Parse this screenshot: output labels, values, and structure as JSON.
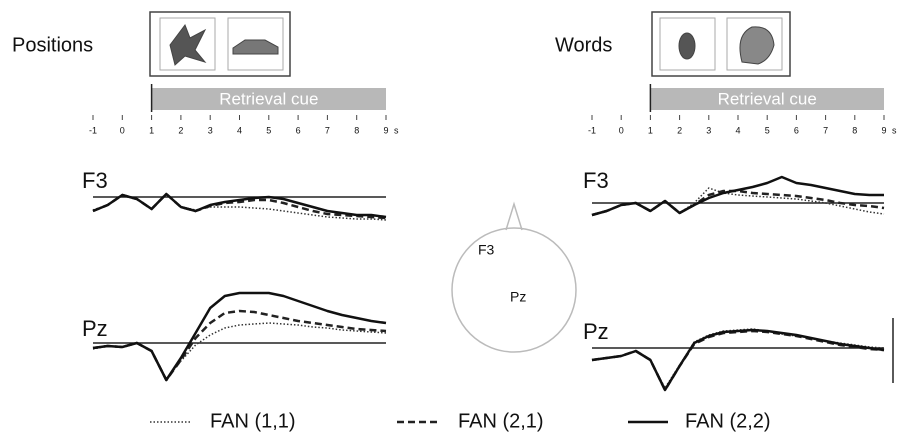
{
  "chart_data": [
    {
      "type": "line",
      "title": "Positions",
      "annotation": "Retrieval cue",
      "channel": "F3",
      "x": [
        -1,
        -0.5,
        0,
        0.5,
        1,
        1.5,
        2,
        2.5,
        3,
        3.5,
        4,
        4.5,
        5,
        5.5,
        6,
        6.5,
        7,
        7.5,
        8,
        8.5,
        9
      ],
      "xlim": [
        -1,
        9
      ],
      "xticks": [
        -1,
        0,
        1,
        2,
        3,
        4,
        5,
        6,
        7,
        8,
        9
      ],
      "xunit": "s",
      "series": [
        {
          "name": "FAN (1,1)",
          "color": "#333333",
          "style": "dotted",
          "values": [
            -13,
            -8,
            2,
            -2,
            -12,
            3,
            -10,
            -13,
            -10,
            -10,
            -10,
            -11,
            -12,
            -14,
            -16,
            -18,
            -20,
            -21,
            -22,
            -22,
            -23
          ]
        },
        {
          "name": "FAN (2,1)",
          "color": "#222222",
          "style": "dashed",
          "values": [
            -14,
            -8,
            2,
            -2,
            -12,
            3,
            -10,
            -14,
            -9,
            -6,
            -5,
            -3,
            -3,
            -6,
            -10,
            -14,
            -17,
            -18,
            -19,
            -20,
            -21
          ]
        },
        {
          "name": "FAN (2,2)",
          "color": "#111111",
          "style": "solid",
          "values": [
            -14,
            -8,
            2,
            -2,
            -12,
            3,
            -10,
            -14,
            -8,
            -5,
            -3,
            -1,
            0,
            -2,
            -6,
            -10,
            -14,
            -16,
            -18,
            -18,
            -20
          ]
        }
      ]
    },
    {
      "type": "line",
      "channel": "Pz",
      "x": [
        -1,
        -0.5,
        0,
        0.5,
        1,
        1.5,
        2,
        2.5,
        3,
        3.5,
        4,
        4.5,
        5,
        5.5,
        6,
        6.5,
        7,
        7.5,
        8,
        8.5,
        9
      ],
      "xlim": [
        -1,
        9
      ],
      "series": [
        {
          "color": "#333333",
          "style": "dotted",
          "values": [
            -6,
            -3,
            -4,
            0,
            -8,
            -36,
            -18,
            -2,
            8,
            15,
            18,
            19,
            20,
            19,
            18,
            16,
            15,
            13,
            12,
            11,
            10
          ]
        },
        {
          "color": "#222222",
          "style": "dashed",
          "values": [
            -5,
            -3,
            -4,
            0,
            -8,
            -37,
            -17,
            5,
            20,
            30,
            32,
            31,
            28,
            25,
            22,
            20,
            18,
            16,
            14,
            13,
            12
          ]
        },
        {
          "color": "#111111",
          "style": "solid",
          "values": [
            -5,
            -3,
            -4,
            0,
            -8,
            -37,
            -15,
            10,
            35,
            47,
            50,
            50,
            50,
            47,
            42,
            37,
            32,
            28,
            25,
            22,
            20
          ]
        }
      ]
    },
    {
      "type": "line",
      "title": "Words",
      "annotation": "Retrieval cue",
      "channel": "F3",
      "x": [
        -1,
        -0.5,
        0,
        0.5,
        1,
        1.5,
        2,
        2.5,
        3,
        3.5,
        4,
        4.5,
        5,
        5.5,
        6,
        6.5,
        7,
        7.5,
        8,
        8.5,
        9
      ],
      "xlim": [
        -1,
        9
      ],
      "xticks": [
        -1,
        0,
        1,
        2,
        3,
        4,
        5,
        6,
        7,
        8,
        9
      ],
      "xunit": "s",
      "series": [
        {
          "color": "#333333",
          "style": "dotted",
          "values": [
            -12,
            -8,
            -2,
            0,
            -8,
            2,
            -10,
            0,
            15,
            10,
            8,
            7,
            6,
            5,
            4,
            2,
            0,
            -3,
            -6,
            -9,
            -11
          ]
        },
        {
          "color": "#222222",
          "style": "dashed",
          "values": [
            -12,
            -8,
            -2,
            0,
            -8,
            2,
            -10,
            -2,
            8,
            12,
            12,
            10,
            9,
            8,
            7,
            5,
            3,
            0,
            -2,
            -3,
            -5
          ]
        },
        {
          "color": "#111111",
          "style": "solid",
          "values": [
            -12,
            -8,
            -2,
            0,
            -8,
            2,
            -10,
            -2,
            5,
            10,
            13,
            16,
            20,
            26,
            20,
            18,
            15,
            12,
            9,
            8,
            8
          ]
        }
      ]
    },
    {
      "type": "line",
      "channel": "Pz",
      "x": [
        -1,
        -0.5,
        0,
        0.5,
        1,
        1.5,
        2,
        2.5,
        3,
        3.5,
        4,
        4.5,
        5,
        5.5,
        6,
        6.5,
        7,
        7.5,
        8,
        8.5,
        9
      ],
      "xlim": [
        -1,
        9
      ],
      "series": [
        {
          "color": "#333333",
          "style": "dotted",
          "values": [
            -12,
            -10,
            -8,
            -3,
            -12,
            -40,
            -17,
            6,
            13,
            17,
            18,
            19,
            17,
            14,
            12,
            10,
            7,
            5,
            3,
            1,
            0
          ]
        },
        {
          "color": "#222222",
          "style": "dashed",
          "values": [
            -12,
            -10,
            -8,
            -3,
            -12,
            -42,
            -18,
            4,
            11,
            15,
            16,
            17,
            16,
            14,
            12,
            9,
            6,
            3,
            1,
            -1,
            -2
          ]
        },
        {
          "color": "#111111",
          "style": "solid",
          "values": [
            -12,
            -10,
            -8,
            -3,
            -12,
            -42,
            -18,
            5,
            12,
            16,
            17,
            18,
            17,
            15,
            13,
            10,
            7,
            4,
            2,
            0,
            -2
          ]
        }
      ]
    }
  ],
  "head": {
    "labels": [
      "F3",
      "Pz"
    ]
  }
}
